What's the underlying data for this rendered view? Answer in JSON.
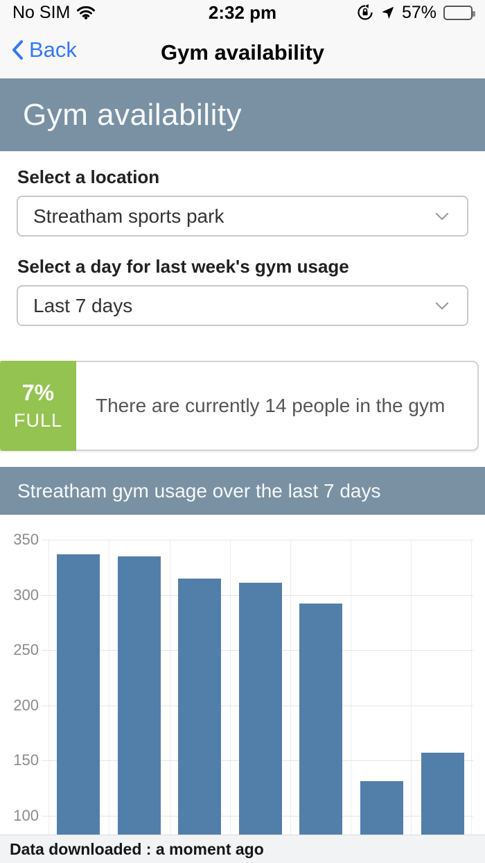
{
  "status_bar": {
    "carrier": "No SIM",
    "time": "2:32 pm",
    "battery_text": "57%",
    "battery_percent": 57
  },
  "nav_bar": {
    "back_label": "Back",
    "title": "Gym availability"
  },
  "banner": {
    "title": "Gym availability"
  },
  "form": {
    "location_label": "Select a location",
    "location_value": "Streatham sports park",
    "day_label": "Select a day for last week's gym usage",
    "day_value": "Last 7 days"
  },
  "occupancy": {
    "percent": "7%",
    "full_label": "FULL",
    "message": "There are currently 14 people in the gym",
    "accent_color": "#94c351"
  },
  "chart_section": {
    "title": "Streatham gym usage over the last 7 days",
    "header_color": "#7991a3"
  },
  "chart_data": {
    "type": "bar",
    "title": "Streatham gym usage over the last 7 days",
    "categories": [
      "",
      "",
      "",
      "",
      "",
      "",
      ""
    ],
    "values": [
      337,
      335,
      315,
      311,
      292,
      131,
      157
    ],
    "xlabel": "",
    "ylabel": "",
    "y_ticks_visible": [
      350,
      300,
      250,
      200,
      150,
      100
    ],
    "ylim_visible": [
      83,
      372
    ],
    "grid": true,
    "legend": false,
    "bar_color": "#527fa9"
  },
  "footer": {
    "text": "Data downloaded : a moment ago"
  },
  "icons": {
    "wifi": "wifi-icon",
    "rotation_lock": "rotation-lock-icon",
    "location": "location-arrow-icon",
    "battery": "battery-icon",
    "back": "chevron-left-icon",
    "select": "chevron-down-icon",
    "nav_scroll": "chevron-down-icon"
  }
}
